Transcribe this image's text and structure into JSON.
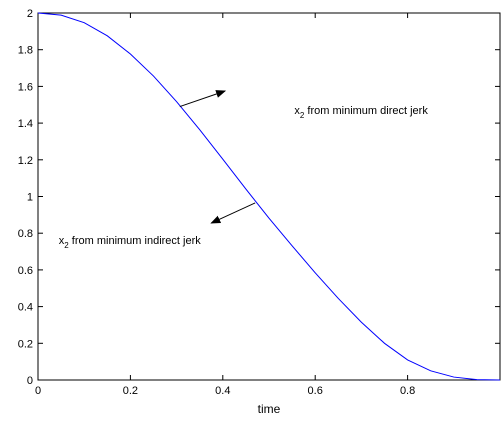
{
  "chart_data": {
    "type": "line",
    "title": "",
    "xlabel": "time",
    "ylabel": "",
    "xlim": [
      0,
      1
    ],
    "ylim": [
      0,
      2
    ],
    "grid": false,
    "x_ticks": [
      0,
      0.2,
      0.4,
      0.6,
      0.8
    ],
    "x_tick_labels": [
      "0",
      "0.2",
      "0.4",
      "0.6",
      "0.8"
    ],
    "y_ticks": [
      0,
      0.2,
      0.4,
      0.6,
      0.8,
      1.0,
      1.2,
      1.4,
      1.6,
      1.8,
      2.0
    ],
    "y_tick_labels": [
      "0",
      "0.2",
      "0.4",
      "0.6",
      "0.8",
      "1",
      "1.2",
      "1.4",
      "1.6",
      "1.8",
      "2"
    ],
    "series": [
      {
        "color": "#0000ff",
        "x": [
          0,
          0.05,
          0.1,
          0.15,
          0.2,
          0.25,
          0.3,
          0.35,
          0.4,
          0.45,
          0.5,
          0.55,
          0.6,
          0.65,
          0.7,
          0.75,
          0.8,
          0.85,
          0.9,
          0.95,
          1.0
        ],
        "values": [
          2.0,
          1.9881,
          1.9472,
          1.8756,
          1.7766,
          1.6563,
          1.5166,
          1.364,
          1.2035,
          1.0406,
          0.8817,
          0.7313,
          0.5842,
          0.4444,
          0.3147,
          0.2,
          0.1092,
          0.05,
          0.016,
          0.002,
          0.0
        ]
      }
    ],
    "annotations": [
      {
        "id": "direct",
        "base": "x",
        "sub": "2",
        "text": " from minimum direct jerk",
        "text_pos": [
          0.555,
          1.45
        ],
        "arrow_from": [
          0.307,
          1.49
        ],
        "arrow_to": [
          0.405,
          1.575
        ]
      },
      {
        "id": "indirect",
        "base": "x",
        "sub": "2",
        "text": " from minimum indirect jerk",
        "text_pos": [
          0.045,
          0.74
        ],
        "arrow_from": [
          0.47,
          0.965
        ],
        "arrow_to": [
          0.375,
          0.855
        ]
      }
    ]
  }
}
